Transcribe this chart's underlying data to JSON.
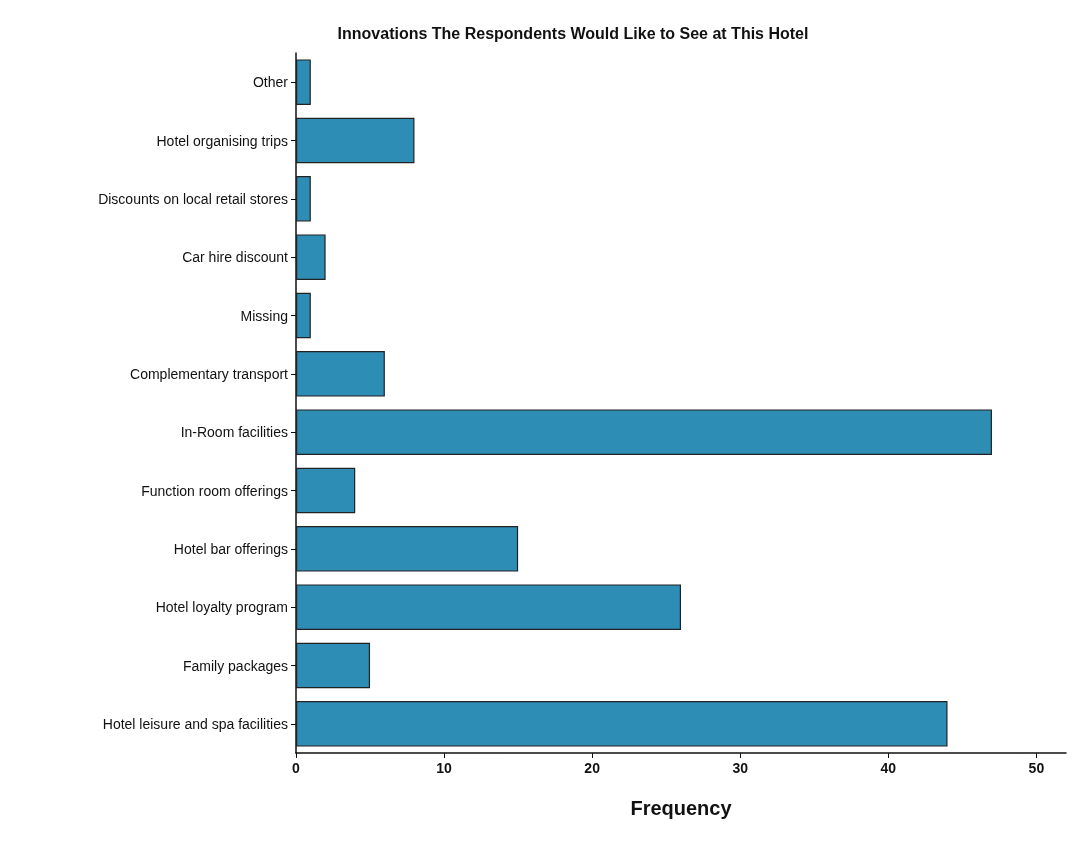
{
  "chart_data": {
    "type": "bar",
    "orientation": "horizontal",
    "title": "Innovations The Respondents Would Like to See at This Hotel",
    "xlabel": "Frequency",
    "categories": [
      "Other",
      "Hotel organising trips",
      "Discounts on local retail stores",
      "Car hire discount",
      "Missing",
      "Complementary transport",
      "In-Room facilities",
      "Function room offerings",
      "Hotel bar offerings",
      "Hotel loyalty program",
      "Family packages",
      "Hotel leisure and spa facilities"
    ],
    "values": [
      1,
      8,
      1,
      2,
      1,
      6,
      47,
      4,
      15,
      26,
      5,
      44
    ],
    "color": "#2e8db5",
    "xlim": [
      0,
      52
    ],
    "xticks": [
      0,
      10,
      20,
      30,
      40,
      50
    ],
    "grid": false
  }
}
